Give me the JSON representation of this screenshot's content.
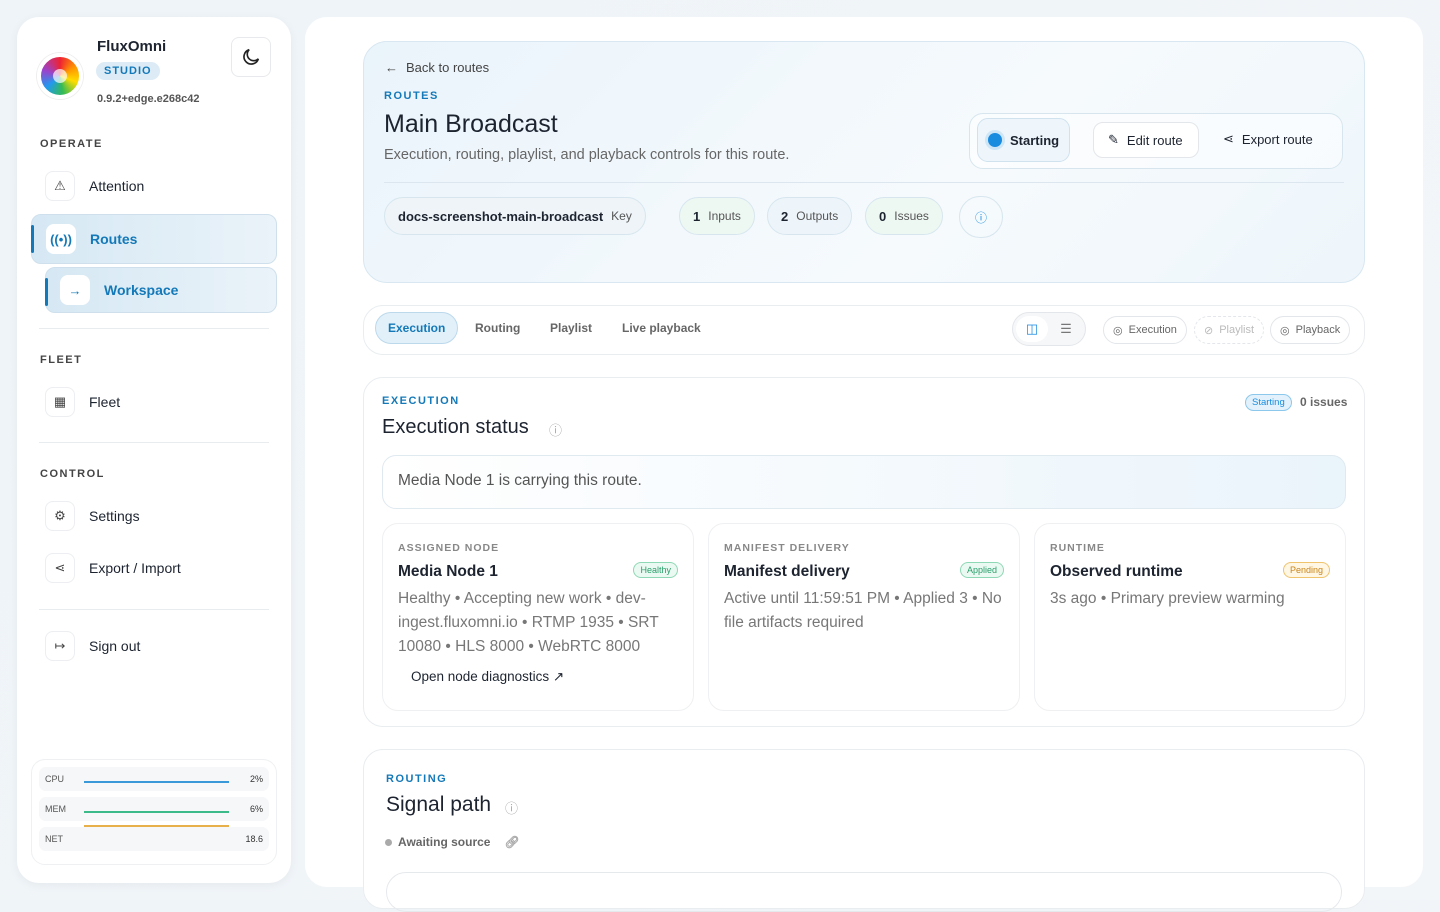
{
  "sidebar": {
    "brand": "FluxOmni",
    "edition": "STUDIO",
    "version": "0.9.2+edge.e268c42",
    "sections": {
      "operate": "OPERATE",
      "fleet": "FLEET",
      "control": "CONTROL"
    },
    "items": {
      "attention": "Attention",
      "routes": "Routes",
      "workspace": "Workspace",
      "fleet": "Fleet",
      "settings": "Settings",
      "export_import": "Export / Import",
      "sign_out": "Sign out"
    },
    "metrics": [
      {
        "label": "CPU",
        "value": "2%",
        "color": "#3a9ad9"
      },
      {
        "label": "MEM",
        "value": "6%",
        "color": "#3cba8a"
      },
      {
        "label": "NET",
        "value": "18.6",
        "color": "#e8b04a"
      }
    ]
  },
  "header": {
    "back": "Back to routes",
    "eyebrow": "ROUTES",
    "title": "Main Broadcast",
    "subtitle": "Execution, routing, playlist, and playback controls for this route.",
    "status": "Starting",
    "edit": "Edit route",
    "export": "Export route",
    "key": {
      "value": "docs-screenshot-main-broadcast",
      "label": "Key"
    },
    "inputs": {
      "count": "1",
      "label": "Inputs"
    },
    "outputs": {
      "count": "2",
      "label": "Outputs"
    },
    "issues": {
      "count": "0",
      "label": "Issues"
    }
  },
  "tabs": [
    "Execution",
    "Routing",
    "Playlist",
    "Live playback"
  ],
  "visibility": {
    "execution": "Execution",
    "playlist": "Playlist",
    "playback": "Playback"
  },
  "execution": {
    "eyebrow": "EXECUTION",
    "title": "Execution status",
    "status": "Starting",
    "issues": "0 issues",
    "banner": "Media Node 1 is carrying this route.",
    "cards": [
      {
        "label": "ASSIGNED NODE",
        "title": "Media Node 1",
        "badge": "Healthy",
        "text": "Healthy • Accepting new work • dev-ingest.fluxomni.io • RTMP 1935 • SRT 10080 • HLS 8000 • WebRTC 8000",
        "link": "Open node diagnostics"
      },
      {
        "label": "MANIFEST DELIVERY",
        "title": "Manifest delivery",
        "badge": "Applied",
        "text": "Active until 11:59:51 PM • Applied 3 • No file artifacts required"
      },
      {
        "label": "RUNTIME",
        "title": "Observed runtime",
        "badge": "Pending",
        "text": "3s ago • Primary preview warming"
      }
    ]
  },
  "routing": {
    "eyebrow": "ROUTING",
    "title": "Signal path",
    "status": "Awaiting source"
  }
}
